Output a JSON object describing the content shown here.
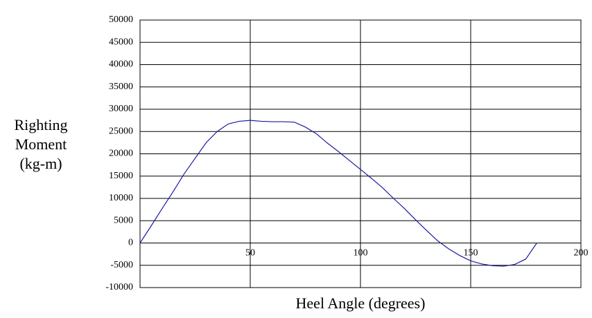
{
  "chart_data": {
    "type": "line",
    "xlabel": "Heel Angle (degrees)",
    "ylabel": [
      "Righting",
      "Moment",
      "(kg-m)"
    ],
    "x": [
      0,
      5,
      10,
      15,
      20,
      25,
      30,
      35,
      40,
      45,
      50,
      55,
      60,
      65,
      70,
      75,
      80,
      85,
      90,
      95,
      100,
      105,
      110,
      115,
      120,
      125,
      130,
      135,
      140,
      145,
      150,
      155,
      160,
      165,
      170,
      175,
      180
    ],
    "series": [
      {
        "color": "#1a1aa0",
        "values": [
          0,
          3800,
          7700,
          11500,
          15500,
          19000,
          22500,
          25000,
          26700,
          27300,
          27500,
          27300,
          27200,
          27200,
          27100,
          26000,
          24500,
          22400,
          20500,
          18500,
          16500,
          14500,
          12400,
          10000,
          7700,
          5200,
          2800,
          500,
          -1300,
          -2800,
          -4000,
          -4700,
          -5100,
          -5200,
          -4800,
          -3600,
          0
        ]
      }
    ],
    "xlim": [
      0,
      200
    ],
    "xticks": [
      50,
      100,
      150,
      200
    ],
    "ylim": [
      -10000,
      50000
    ],
    "yticks": [
      -10000,
      -5000,
      0,
      5000,
      10000,
      15000,
      20000,
      25000,
      30000,
      35000,
      40000,
      45000,
      50000
    ],
    "grid": true
  }
}
